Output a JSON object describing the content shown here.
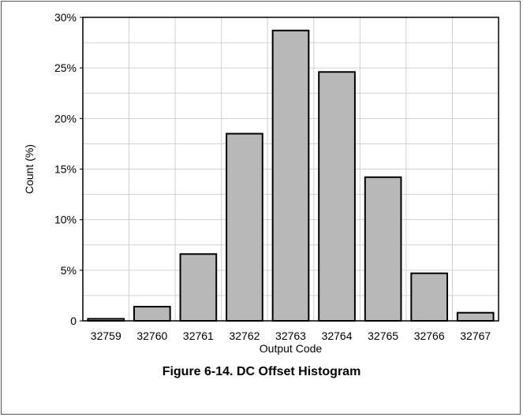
{
  "figure": {
    "caption": "Figure 6-14. DC Offset Histogram"
  },
  "chart_data": {
    "type": "bar",
    "title": "",
    "xlabel": "Output Code",
    "ylabel": "Count (%)",
    "categories": [
      "32759",
      "32760",
      "32761",
      "32762",
      "32763",
      "32764",
      "32765",
      "32766",
      "32767"
    ],
    "values": [
      0.2,
      1.4,
      6.6,
      18.5,
      28.7,
      24.6,
      14.2,
      4.7,
      0.8
    ],
    "ylim": [
      0,
      30
    ],
    "yticks": [
      0,
      5,
      10,
      15,
      20,
      25,
      30
    ],
    "ytick_labels": [
      "0",
      "5%",
      "10%",
      "15%",
      "20%",
      "25%",
      "30%"
    ],
    "grid": true,
    "minor_gridlines_per_major": 2,
    "legend": "none",
    "colors": {
      "bar_fill": "#b8b8b8",
      "bar_edge": "#000000",
      "grid": "#d0d0d0"
    }
  }
}
